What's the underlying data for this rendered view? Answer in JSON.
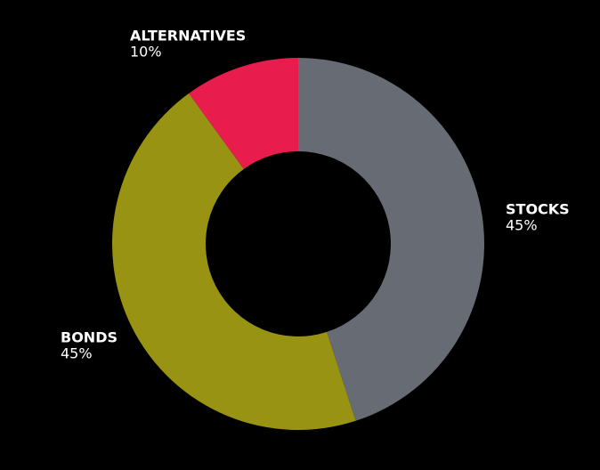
{
  "chart_data": {
    "type": "pie",
    "categories": [
      "STOCKS",
      "BONDS",
      "ALTERNATIVES"
    ],
    "values": [
      45,
      45,
      10
    ],
    "value_labels": [
      "45%",
      "45%",
      "10%"
    ],
    "colors": [
      "#676b73",
      "#999314",
      "#e91d4d"
    ]
  }
}
